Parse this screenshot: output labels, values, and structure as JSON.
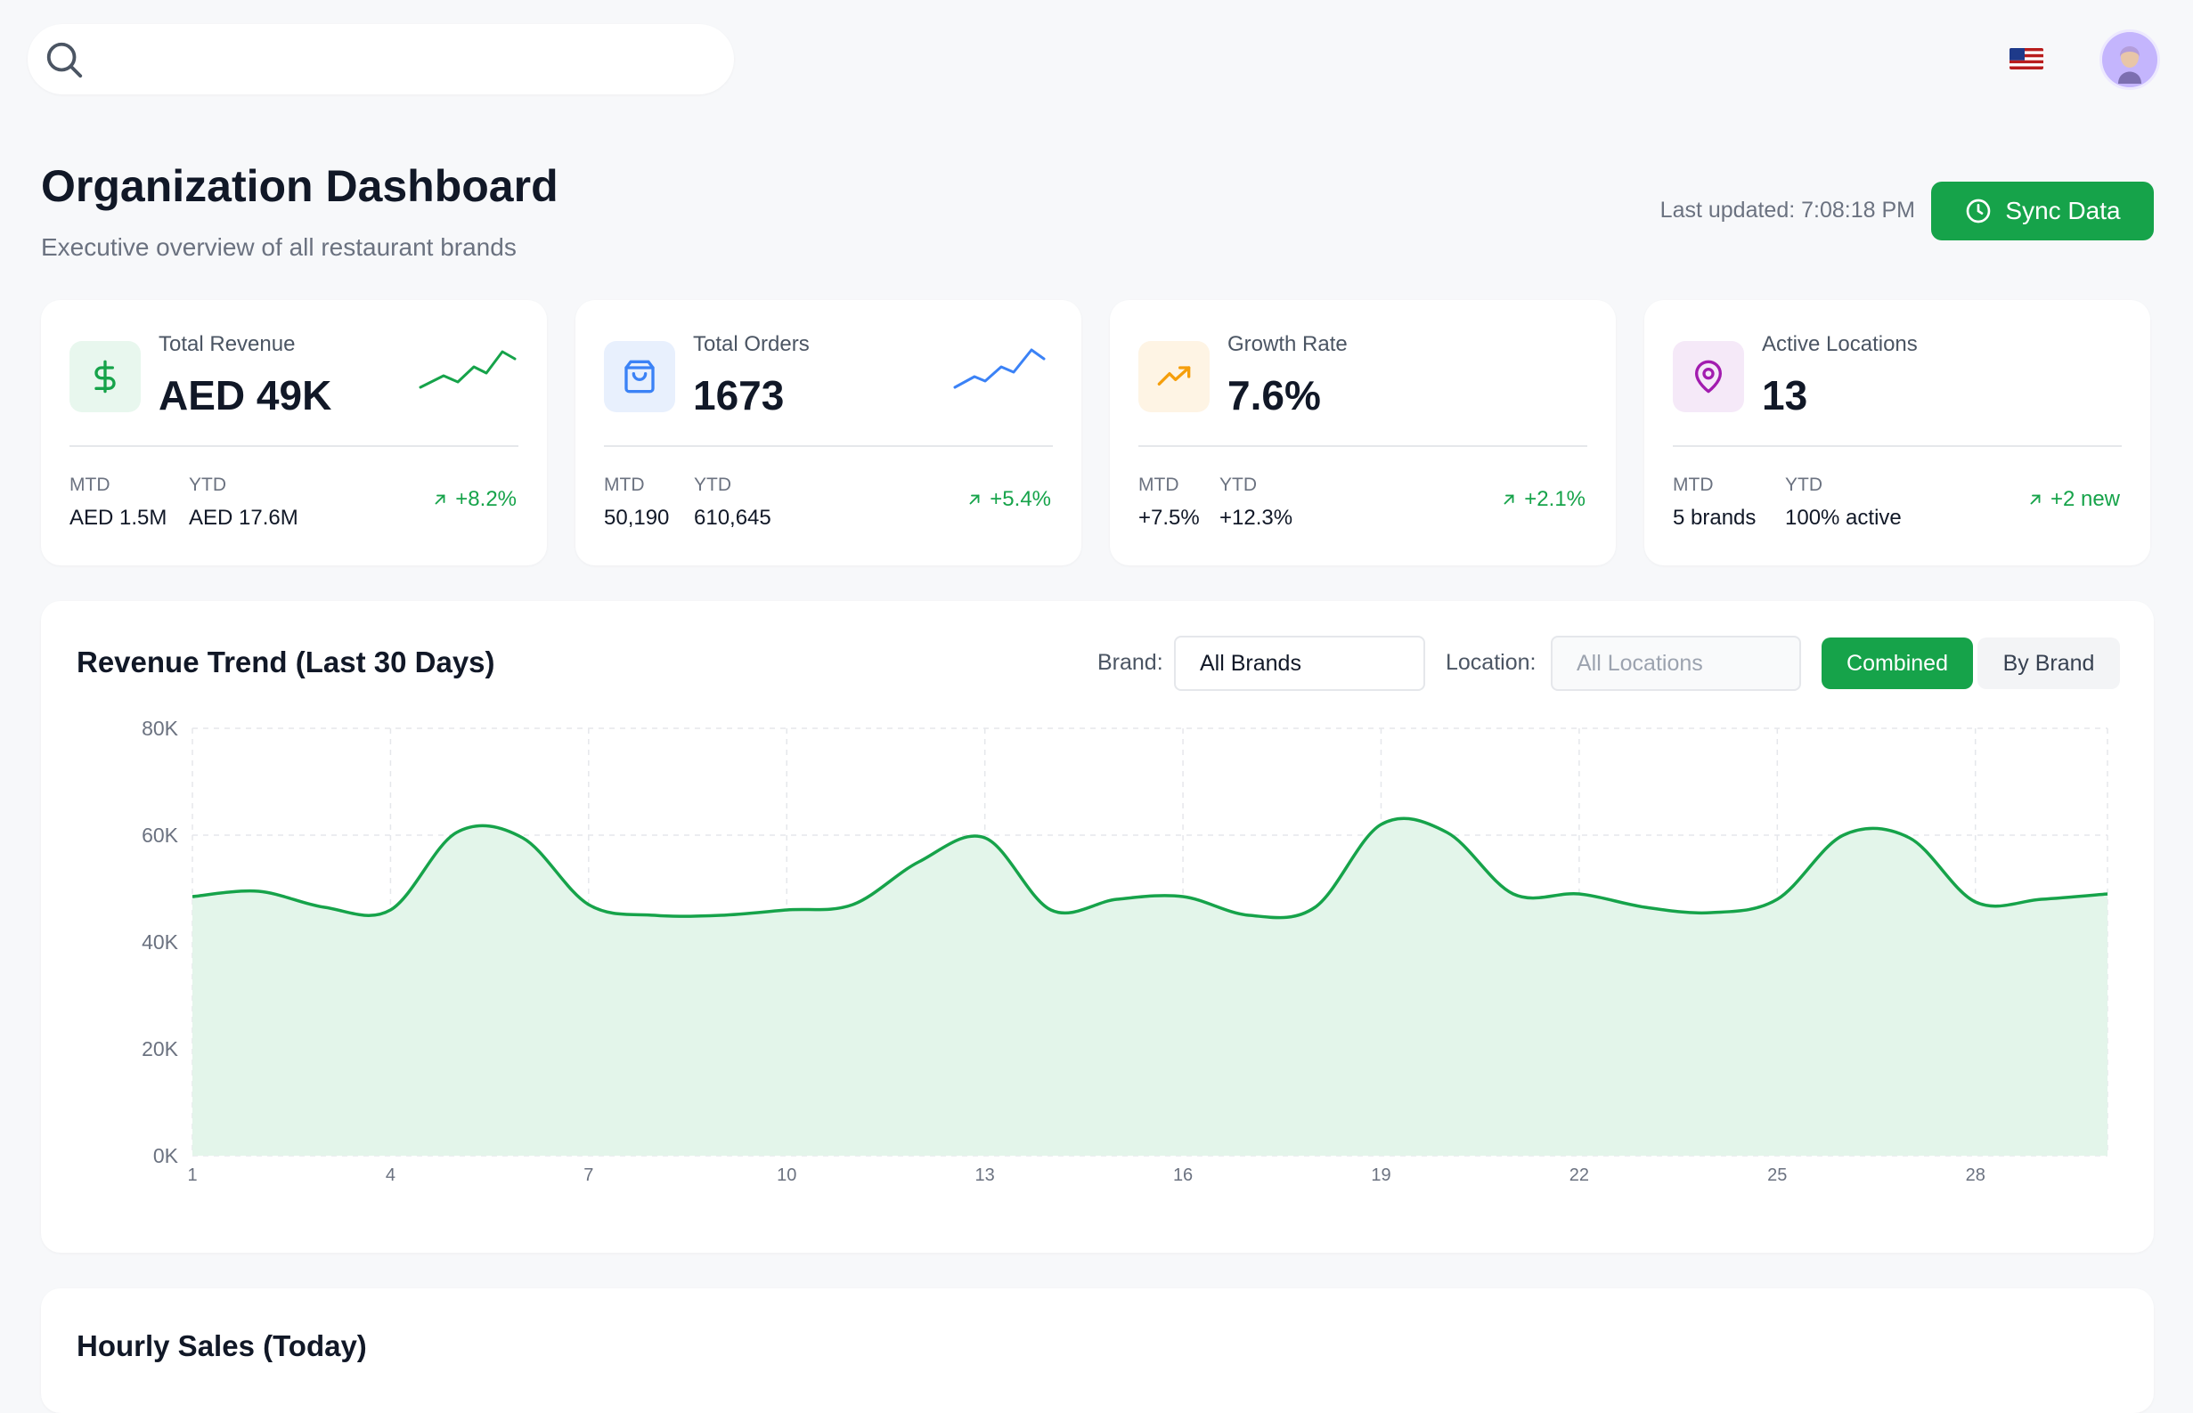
{
  "header": {
    "title": "Organization Dashboard",
    "subtitle": "Executive overview of all restaurant brands",
    "last_updated": "Last updated: 7:08:18 PM",
    "sync_label": "Sync Data"
  },
  "topbar": {
    "search_placeholder": "",
    "flag_icon": "us-flag-icon",
    "avatar_icon": "user-avatar"
  },
  "colors": {
    "accent": "#16a34a",
    "revenue_icon_bg": "#e8f7ee",
    "orders_icon_bg": "#e8f0fd",
    "growth_icon_bg": "#fef4e4",
    "locations_icon_bg": "#f5e9f8",
    "orders_spark": "#3b82f6"
  },
  "stats": [
    {
      "label": "Total Revenue",
      "value": "AED 49K",
      "icon": "dollar-icon",
      "mtd_label": "MTD",
      "mtd_value": "AED 1.5M",
      "ytd_label": "YTD",
      "ytd_value": "AED 17.6M",
      "delta": "+8.2%",
      "sparkline": [
        2,
        5,
        3,
        7,
        5,
        9,
        7
      ]
    },
    {
      "label": "Total Orders",
      "value": "1673",
      "icon": "shopping-bag-icon",
      "mtd_label": "MTD",
      "mtd_value": "50,190",
      "ytd_label": "YTD",
      "ytd_value": "610,645",
      "delta": "+5.4%",
      "sparkline": [
        2,
        4,
        3,
        6,
        5,
        9,
        7
      ]
    },
    {
      "label": "Growth Rate",
      "value": "7.6%",
      "icon": "trending-up-icon",
      "mtd_label": "MTD",
      "mtd_value": "+7.5%",
      "ytd_label": "YTD",
      "ytd_value": "+12.3%",
      "delta": "+2.1%"
    },
    {
      "label": "Active Locations",
      "value": "13",
      "icon": "map-pin-icon",
      "mtd_label": "MTD",
      "mtd_value": "5 brands",
      "ytd_label": "YTD",
      "ytd_value": "100% active",
      "delta": "+2 new"
    }
  ],
  "revenue": {
    "title": "Revenue Trend (Last 30 Days)",
    "brand_label": "Brand:",
    "brand_value": "All Brands",
    "location_label": "Location:",
    "location_placeholder": "All Locations",
    "toggle_combined": "Combined",
    "toggle_by_brand": "By Brand"
  },
  "hourly": {
    "title": "Hourly Sales (Today)"
  },
  "chart_data": {
    "type": "area",
    "x": [
      1,
      2,
      3,
      4,
      5,
      6,
      7,
      8,
      9,
      10,
      11,
      12,
      13,
      14,
      15,
      16,
      17,
      18,
      19,
      20,
      21,
      22,
      23,
      24,
      25,
      26,
      27,
      28,
      29,
      30
    ],
    "values": [
      48500,
      49500,
      46500,
      46000,
      60500,
      59500,
      47000,
      45000,
      45000,
      46000,
      47000,
      55000,
      59500,
      46000,
      48000,
      48500,
      45000,
      46500,
      62000,
      60500,
      49000,
      49000,
      46500,
      45500,
      48000,
      60000,
      59500,
      47500,
      48000,
      49000
    ],
    "yticks": [
      "0K",
      "20K",
      "40K",
      "60K",
      "80K"
    ],
    "xticks": [
      "1",
      "4",
      "7",
      "10",
      "13",
      "16",
      "19",
      "22",
      "25",
      "28"
    ],
    "ylim": [
      0,
      80000
    ],
    "xlim": [
      1,
      30
    ],
    "grid": true,
    "line_color": "#16a34a",
    "fill_color": "#e3f5ea"
  }
}
